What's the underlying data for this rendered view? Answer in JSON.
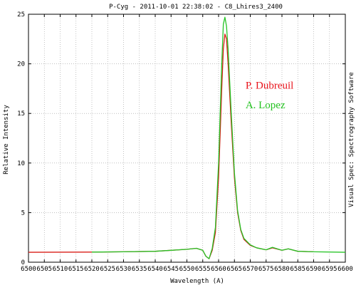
{
  "chart_data": {
    "type": "line",
    "title": "P-Cyg - 2011-10-01 22:38:02 - C8_Lhires3_2400",
    "xlabel": "Wavelength (A)",
    "ylabel": "Relative Intensity",
    "side_label": "Visual Spec: Spectrography Software",
    "xlim": [
      6500,
      6600
    ],
    "ylim": [
      0,
      25
    ],
    "x_ticks": [
      6500,
      6505,
      6510,
      6515,
      6520,
      6525,
      6530,
      6535,
      6540,
      6545,
      6550,
      6555,
      6560,
      6565,
      6570,
      6575,
      6580,
      6585,
      6590,
      6595,
      6600
    ],
    "y_ticks": [
      0,
      5,
      10,
      15,
      20,
      25
    ],
    "grid": true,
    "annotations": [
      {
        "text": "P. Dubreuil",
        "color": "#e8141c",
        "x": 6568.5,
        "y": 17.5
      },
      {
        "text": "A. Lopez",
        "color": "#22c21f",
        "x": 6568.5,
        "y": 15.5
      }
    ],
    "series": [
      {
        "name": "P. Dubreuil",
        "color": "#d91e18",
        "x": [
          6500,
          6520,
          6530,
          6540,
          6545,
          6550,
          6553,
          6555,
          6556,
          6557,
          6558,
          6559,
          6560,
          6561,
          6561.5,
          6562,
          6562.5,
          6563,
          6564,
          6565,
          6566,
          6567,
          6568,
          6570,
          6572,
          6575,
          6577,
          6580,
          6582,
          6585,
          6590
        ],
        "y": [
          1.0,
          1.02,
          1.05,
          1.1,
          1.2,
          1.3,
          1.4,
          1.2,
          0.6,
          0.35,
          1.2,
          3.0,
          8.5,
          17.5,
          21.5,
          23.0,
          22.5,
          20.0,
          14.0,
          8.5,
          5.0,
          3.2,
          2.3,
          1.7,
          1.45,
          1.25,
          1.45,
          1.2,
          1.35,
          1.1,
          1.05
        ]
      },
      {
        "name": "A. Lopez",
        "color": "#26c426",
        "x": [
          6520,
          6530,
          6540,
          6545,
          6550,
          6553,
          6555,
          6556,
          6557,
          6558,
          6559,
          6560,
          6561,
          6561.5,
          6562,
          6562.5,
          6563,
          6564,
          6565,
          6566,
          6567,
          6568,
          6570,
          6572,
          6575,
          6577,
          6580,
          6582,
          6585,
          6590,
          6600
        ],
        "y": [
          1.02,
          1.05,
          1.1,
          1.2,
          1.3,
          1.4,
          1.2,
          0.6,
          0.35,
          1.4,
          3.5,
          10.0,
          20.0,
          24.0,
          24.7,
          23.8,
          21.5,
          15.0,
          9.0,
          5.2,
          3.3,
          2.4,
          1.75,
          1.45,
          1.25,
          1.5,
          1.2,
          1.35,
          1.1,
          1.05,
          1.0
        ]
      }
    ]
  }
}
